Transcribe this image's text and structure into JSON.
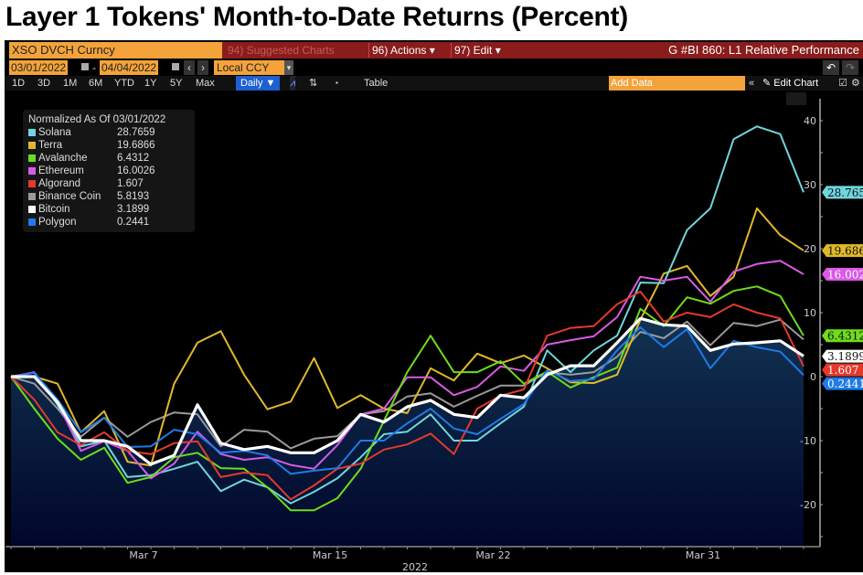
{
  "title": "Layer 1 Tokens' Month-to-Date Returns (Percent)",
  "toolbar": {
    "ticker": "XSO DVCH Curncy",
    "suggested": "94) Suggested Charts",
    "actions": "96) Actions ▾",
    "edit": "97) Edit ▾",
    "chart_id": "G #BI 860: L1 Relative Performance",
    "start_date": "03/01/2022",
    "end_date": "04/04/2022",
    "dash": "-",
    "prev": "‹",
    "next": "›",
    "currency": "Local CCY",
    "dropdown": "▾",
    "undo": "↶",
    "redo": "↷",
    "periods": [
      "1D",
      "3D",
      "1M",
      "6M",
      "YTD",
      "1Y",
      "5Y",
      "Max"
    ],
    "frequency": "Daily ▼",
    "line_icon": "⩘",
    "bar_icon": "⇅",
    "more": "▪",
    "table": "Table",
    "add_data_placeholder": "Add Data",
    "collapse": "«",
    "edit_chart": "✎ Edit Chart",
    "annotate": "☑",
    "settings": "⚙"
  },
  "chart_data": {
    "type": "line",
    "title": "Layer 1 Tokens' Month-to-Date Returns (Percent)",
    "legend_title": "Normalized As Of 03/01/2022",
    "xlabel": "2022",
    "ylabel": "",
    "x_start": "2022-03-01",
    "x_end": "2022-04-04",
    "x_ticks": [
      {
        "label": "Mar 7",
        "index": 6
      },
      {
        "label": "Mar 15",
        "index": 14
      },
      {
        "label": "Mar 22",
        "index": 21
      },
      {
        "label": "Mar 31",
        "index": 30
      }
    ],
    "ylim": [
      -26,
      43
    ],
    "y_ticks": [
      40,
      30,
      20,
      10,
      0,
      -10,
      -20
    ],
    "legend_position": "top-left",
    "filled_series": "Bitcoin",
    "series": [
      {
        "name": "Solana",
        "last": "28.7659",
        "tag": "28.765",
        "color": "#6fd6dc",
        "text": "#111",
        "values": [
          0,
          0.6,
          -4.4,
          -10.9,
          -10,
          -15.7,
          -15.4,
          -14.4,
          -13.3,
          -17.9,
          -16.1,
          -17.3,
          -19.8,
          -18,
          -15.9,
          -12.6,
          -9,
          -8.6,
          -5.9,
          -10,
          -10,
          -7.3,
          -4.7,
          4.1,
          0.7,
          4.1,
          6.4,
          14.7,
          14.6,
          22.9,
          26.3,
          37.1,
          39.1,
          37.9,
          28.8
        ]
      },
      {
        "name": "Terra",
        "last": "19.6866",
        "tag": "19.686",
        "color": "#e0b92b",
        "text": "#111",
        "values": [
          0,
          0,
          -1.1,
          -8.7,
          -5.4,
          -13.3,
          -13.9,
          -1.1,
          5.3,
          7.1,
          0.3,
          -5.1,
          -3.9,
          2.9,
          -4.9,
          -2.9,
          -5,
          -5.7,
          1.3,
          -0.6,
          3.6,
          2.1,
          3.3,
          1.3,
          -0.9,
          -1,
          0.3,
          8.9,
          16.1,
          17.3,
          12.6,
          15.6,
          26.3,
          22.1,
          19.7
        ]
      },
      {
        "name": "Avalanche",
        "last": "6.4312",
        "tag": "6.4312",
        "color": "#6fdc1c",
        "text": "#111",
        "values": [
          0,
          -5,
          -9.7,
          -13,
          -11.1,
          -16.6,
          -15.7,
          -12.6,
          -11.9,
          -14.3,
          -14.4,
          -17.3,
          -20.9,
          -20.9,
          -19,
          -14.4,
          -6.9,
          0.7,
          6.4,
          0.7,
          0.7,
          2.4,
          -1.1,
          0.8,
          -1.7,
          -0.1,
          1.4,
          10.6,
          7.9,
          12.4,
          11.4,
          13.4,
          14.1,
          12.6,
          6.4
        ]
      },
      {
        "name": "Ethereum",
        "last": "16.0026",
        "tag": "16.002",
        "color": "#d95ae6",
        "text": "#fff",
        "values": [
          0,
          0.7,
          -4,
          -11.6,
          -10.1,
          -11.6,
          -15.9,
          -13.6,
          -8.6,
          -12.1,
          -13,
          -12.6,
          -13.8,
          -14.4,
          -10.7,
          -5.9,
          -5,
          -0.1,
          -0.1,
          -2.9,
          -1.6,
          1.6,
          0.9,
          5,
          5.7,
          6.3,
          9.3,
          15.6,
          15,
          15.6,
          11.7,
          16.4,
          17.6,
          18.1,
          16
        ]
      },
      {
        "name": "Algorand",
        "last": "1.607",
        "tag": "1.607",
        "color": "#e33a2c",
        "text": "#fff",
        "values": [
          0,
          -3.6,
          -8.7,
          -10.7,
          -8.7,
          -11.6,
          -12.1,
          -10.4,
          -10.1,
          -15.7,
          -15,
          -15.4,
          -19.2,
          -17,
          -14.4,
          -13.6,
          -11.4,
          -10.6,
          -8.9,
          -12.1,
          -5,
          -3,
          -2,
          6.4,
          7.6,
          7.9,
          11.3,
          13.3,
          8.6,
          10,
          9.3,
          11.3,
          10,
          9.1,
          1.6
        ]
      },
      {
        "name": "Binance Coin",
        "last": "5.8193",
        "tag": "",
        "color": "#9a9a9a",
        "text": "#111",
        "values": [
          0,
          -1.1,
          -5,
          -9.4,
          -6.4,
          -9.4,
          -7.1,
          -5.6,
          -5.9,
          -10.9,
          -8.3,
          -8.6,
          -11.2,
          -9.7,
          -9.3,
          -5.9,
          -5.4,
          -3.1,
          -2.6,
          -4.7,
          -3,
          -1.4,
          -1.4,
          0.7,
          0.3,
          0.7,
          3.1,
          7,
          6,
          8.6,
          4.9,
          8.4,
          7.9,
          8.9,
          5.8
        ]
      },
      {
        "name": "Bitcoin",
        "last": "3.1899",
        "tag": "3.1899",
        "color": "#ffffff",
        "text": "#111",
        "values": [
          0,
          0,
          -4,
          -10,
          -10,
          -10.9,
          -13.7,
          -12.3,
          -4.4,
          -10.4,
          -11.4,
          -10.9,
          -11.9,
          -11.9,
          -10,
          -5.9,
          -7.1,
          -4.7,
          -3.7,
          -5.9,
          -6.4,
          -2.9,
          -3.3,
          0.3,
          1.7,
          1.7,
          5.3,
          9.1,
          8.1,
          7.9,
          4.1,
          5.1,
          5.3,
          5.6,
          3.2
        ]
      },
      {
        "name": "Polygon",
        "last": "0.2441",
        "tag": "0.2441",
        "color": "#1e7be8",
        "text": "#fff",
        "values": [
          0,
          0.6,
          -3.6,
          -8.7,
          -6.4,
          -11,
          -10.9,
          -8.3,
          -9,
          -11.9,
          -11.6,
          -12.3,
          -15.2,
          -14.7,
          -14.3,
          -10,
          -10,
          -7.3,
          -5,
          -8.1,
          -9,
          -6.6,
          -4.3,
          1,
          -0.7,
          -0.4,
          4.1,
          7.7,
          4.6,
          7.4,
          1.3,
          5.6,
          4.6,
          3.9,
          0.24
        ]
      }
    ]
  }
}
